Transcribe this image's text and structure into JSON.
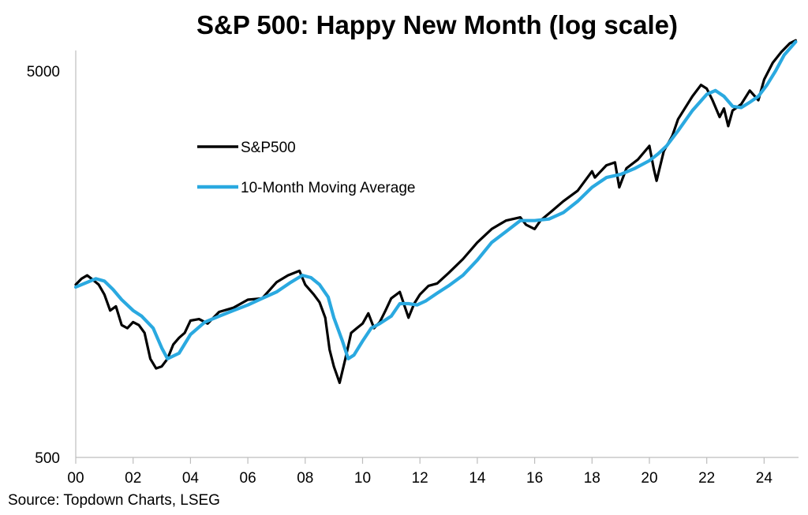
{
  "chart_data": {
    "type": "line",
    "title": "S&P 500: Happy New Month (log scale)",
    "source": "Source: Topdown Charts, LSEG",
    "y_scale": "log",
    "ylim": [
      500,
      7000
    ],
    "xlim": [
      2000,
      2025.2
    ],
    "y_ticks": [
      {
        "value": 500,
        "label": "500"
      },
      {
        "value": 5000,
        "label": "5000"
      }
    ],
    "x_ticks": [
      {
        "value": 2000,
        "label": "00"
      },
      {
        "value": 2002,
        "label": "02"
      },
      {
        "value": 2004,
        "label": "04"
      },
      {
        "value": 2006,
        "label": "06"
      },
      {
        "value": 2008,
        "label": "08"
      },
      {
        "value": 2010,
        "label": "10"
      },
      {
        "value": 2012,
        "label": "12"
      },
      {
        "value": 2014,
        "label": "14"
      },
      {
        "value": 2016,
        "label": "16"
      },
      {
        "value": 2018,
        "label": "18"
      },
      {
        "value": 2020,
        "label": "20"
      },
      {
        "value": 2022,
        "label": "22"
      },
      {
        "value": 2024,
        "label": "24"
      }
    ],
    "legend": "upper-left",
    "grid": false,
    "series": [
      {
        "name": "S&P500",
        "color": "#000000",
        "x": [
          2000.0,
          2000.2,
          2000.4,
          2000.6,
          2000.8,
          2001.0,
          2001.2,
          2001.4,
          2001.6,
          2001.8,
          2002.0,
          2002.2,
          2002.4,
          2002.6,
          2002.8,
          2003.0,
          2003.2,
          2003.4,
          2003.6,
          2003.8,
          2004.0,
          2004.3,
          2004.6,
          2005.0,
          2005.5,
          2006.0,
          2006.5,
          2007.0,
          2007.4,
          2007.8,
          2008.0,
          2008.3,
          2008.5,
          2008.7,
          2008.85,
          2009.0,
          2009.2,
          2009.4,
          2009.6,
          2009.8,
          2010.0,
          2010.2,
          2010.4,
          2010.6,
          2010.8,
          2011.0,
          2011.3,
          2011.6,
          2011.8,
          2012.0,
          2012.3,
          2012.6,
          2013.0,
          2013.5,
          2014.0,
          2014.5,
          2015.0,
          2015.5,
          2015.7,
          2016.0,
          2016.2,
          2016.6,
          2017.0,
          2017.5,
          2018.0,
          2018.1,
          2018.5,
          2018.8,
          2018.95,
          2019.2,
          2019.6,
          2020.0,
          2020.15,
          2020.25,
          2020.5,
          2020.8,
          2021.0,
          2021.5,
          2021.8,
          2022.0,
          2022.2,
          2022.45,
          2022.6,
          2022.75,
          2022.9,
          2023.2,
          2023.5,
          2023.8,
          2024.0,
          2024.3,
          2024.6,
          2024.9,
          2025.1
        ],
        "values": [
          1400,
          1450,
          1480,
          1440,
          1400,
          1320,
          1200,
          1230,
          1100,
          1080,
          1120,
          1100,
          1050,
          900,
          850,
          860,
          900,
          980,
          1020,
          1050,
          1130,
          1140,
          1110,
          1190,
          1220,
          1280,
          1290,
          1420,
          1480,
          1520,
          1400,
          1320,
          1260,
          1150,
          950,
          860,
          780,
          900,
          1050,
          1080,
          1110,
          1180,
          1080,
          1120,
          1200,
          1290,
          1340,
          1150,
          1250,
          1320,
          1390,
          1410,
          1500,
          1630,
          1800,
          1950,
          2050,
          2090,
          2000,
          1950,
          2050,
          2170,
          2300,
          2450,
          2750,
          2650,
          2850,
          2900,
          2500,
          2800,
          2950,
          3200,
          2800,
          2600,
          3100,
          3400,
          3750,
          4300,
          4600,
          4500,
          4200,
          3800,
          4000,
          3600,
          3950,
          4100,
          4450,
          4200,
          4750,
          5250,
          5600,
          5900,
          6000
        ]
      },
      {
        "name": "10-Month Moving Average",
        "color": "#2aa9e0",
        "x": [
          2000.0,
          2000.3,
          2000.7,
          2001.0,
          2001.3,
          2001.6,
          2002.0,
          2002.3,
          2002.7,
          2003.0,
          2003.2,
          2003.6,
          2004.0,
          2004.5,
          2005.0,
          2005.5,
          2006.0,
          2006.5,
          2007.0,
          2007.5,
          2007.9,
          2008.2,
          2008.5,
          2008.8,
          2009.0,
          2009.3,
          2009.5,
          2009.7,
          2010.0,
          2010.3,
          2010.6,
          2011.0,
          2011.3,
          2011.6,
          2011.9,
          2012.2,
          2012.6,
          2013.0,
          2013.5,
          2014.0,
          2014.5,
          2015.0,
          2015.5,
          2016.0,
          2016.5,
          2017.0,
          2017.5,
          2018.0,
          2018.5,
          2019.0,
          2019.5,
          2020.0,
          2020.3,
          2020.6,
          2021.0,
          2021.5,
          2022.0,
          2022.3,
          2022.6,
          2022.9,
          2023.2,
          2023.5,
          2023.8,
          2024.1,
          2024.4,
          2024.7,
          2025.1
        ],
        "values": [
          1380,
          1410,
          1450,
          1430,
          1360,
          1280,
          1200,
          1160,
          1080,
          960,
          900,
          930,
          1040,
          1120,
          1160,
          1200,
          1240,
          1290,
          1340,
          1420,
          1480,
          1460,
          1400,
          1300,
          1150,
          1000,
          900,
          920,
          1000,
          1080,
          1110,
          1160,
          1250,
          1250,
          1240,
          1270,
          1330,
          1390,
          1480,
          1620,
          1800,
          1920,
          2050,
          2050,
          2070,
          2150,
          2300,
          2500,
          2650,
          2700,
          2800,
          2930,
          3050,
          3200,
          3500,
          3950,
          4350,
          4450,
          4300,
          4050,
          4020,
          4150,
          4300,
          4600,
          5000,
          5500,
          5950
        ]
      }
    ]
  }
}
